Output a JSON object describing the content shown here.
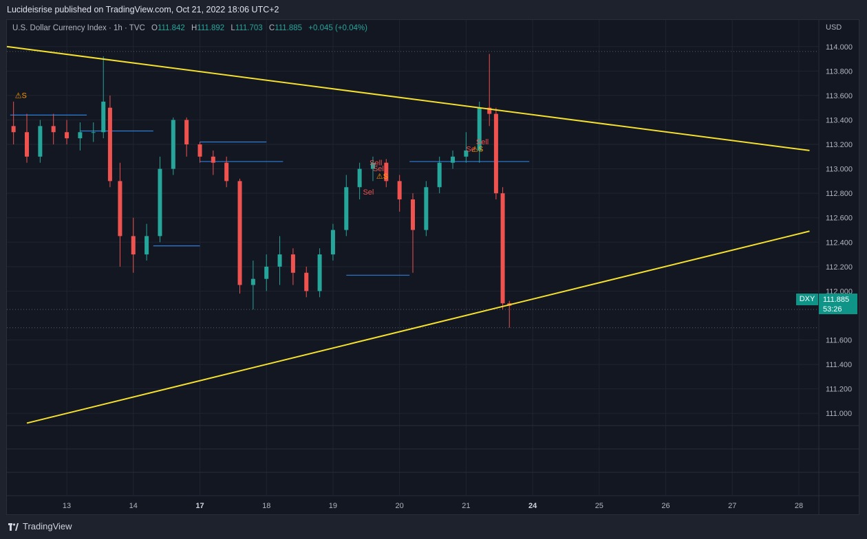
{
  "header": {
    "published": "Lucideisrise published on TradingView.com, Oct 21, 2022 18:06 UTC+2"
  },
  "legend": {
    "symbol": "U.S. Dollar Currency Index · 1h · TVC",
    "open_label": "O",
    "open": "111.842",
    "high_label": "H",
    "high": "111.892",
    "low_label": "L",
    "low": "111.703",
    "close_label": "C",
    "close": "111.885",
    "change": "+0.045 (+0.04%)"
  },
  "price_axis": {
    "currency": "USD",
    "ticker": "DXY",
    "last_price": "111.885",
    "countdown": "53:26"
  },
  "footer": {
    "brand": "TradingView"
  },
  "colors": {
    "up": "#26a69a",
    "down": "#ef5350",
    "trendline": "#f5e12d",
    "level": "#2f7fd8",
    "background": "#131722"
  },
  "chart_data": {
    "type": "candlestick",
    "title": "U.S. Dollar Currency Index, 1h, TVC",
    "ylabel": "USD",
    "ylim": [
      110.9,
      114.1
    ],
    "y_ticks": [
      "114.000",
      "113.800",
      "113.600",
      "113.400",
      "113.200",
      "113.000",
      "112.800",
      "112.600",
      "112.400",
      "112.200",
      "112.000",
      "111.600",
      "111.400",
      "111.200",
      "111.000"
    ],
    "x_ticks": [
      {
        "label": "13",
        "x": 0.9,
        "bold": false
      },
      {
        "label": "14",
        "x": 1.9,
        "bold": false
      },
      {
        "label": "17",
        "x": 2.9,
        "bold": true
      },
      {
        "label": "18",
        "x": 3.9,
        "bold": false
      },
      {
        "label": "19",
        "x": 4.9,
        "bold": false
      },
      {
        "label": "20",
        "x": 5.9,
        "bold": false
      },
      {
        "label": "21",
        "x": 6.9,
        "bold": false
      },
      {
        "label": "24",
        "x": 7.9,
        "bold": true
      },
      {
        "label": "25",
        "x": 8.9,
        "bold": false
      },
      {
        "label": "26",
        "x": 9.9,
        "bold": false
      },
      {
        "label": "27",
        "x": 10.9,
        "bold": false
      },
      {
        "label": "28",
        "x": 11.9,
        "bold": false
      }
    ],
    "x_range": [
      0,
      12.2
    ],
    "hlines_dotted": [
      113.96,
      111.85,
      111.7
    ],
    "trendlines": [
      {
        "name": "upper",
        "x": [
          0,
          12.06
        ],
        "y": [
          114.0,
          113.15
        ]
      },
      {
        "name": "lower",
        "x": [
          0.3,
          12.06
        ],
        "y": [
          110.92,
          112.49
        ]
      }
    ],
    "levels": [
      {
        "x0": 0.05,
        "x1": 1.2,
        "y": 113.44
      },
      {
        "x0": 1.1,
        "x1": 2.2,
        "y": 113.31
      },
      {
        "x0": 2.9,
        "x1": 3.9,
        "y": 113.22
      },
      {
        "x0": 2.9,
        "x1": 4.15,
        "y": 113.06
      },
      {
        "x0": 2.2,
        "x1": 2.9,
        "y": 112.37
      },
      {
        "x0": 5.1,
        "x1": 6.05,
        "y": 112.13
      },
      {
        "x0": 6.05,
        "x1": 7.85,
        "y": 113.06
      }
    ],
    "series": [
      {
        "name": "DXY",
        "x": [
          0.1,
          0.3,
          0.5,
          0.7,
          0.9,
          1.1,
          1.3,
          1.45,
          1.55,
          1.7,
          1.9,
          2.1,
          2.3,
          2.5,
          2.7,
          2.9,
          3.1,
          3.3,
          3.5,
          3.7,
          3.9,
          4.1,
          4.3,
          4.5,
          4.7,
          4.9,
          5.1,
          5.3,
          5.5,
          5.7,
          5.9,
          6.1,
          6.3,
          6.5,
          6.7,
          6.9,
          7.1,
          7.25,
          7.35,
          7.45,
          7.55
        ],
        "open": [
          113.35,
          113.3,
          113.1,
          113.35,
          113.3,
          113.25,
          113.3,
          113.3,
          113.5,
          112.9,
          112.45,
          112.3,
          112.45,
          113.0,
          113.4,
          113.2,
          113.1,
          113.05,
          112.9,
          112.05,
          112.1,
          112.2,
          112.3,
          112.15,
          112.0,
          112.3,
          112.5,
          112.85,
          113.0,
          113.05,
          112.9,
          112.75,
          112.5,
          112.85,
          113.05,
          113.1,
          113.15,
          113.5,
          113.45,
          112.8,
          111.9
        ],
        "close": [
          113.3,
          113.1,
          113.35,
          113.3,
          113.25,
          113.3,
          113.3,
          113.55,
          112.9,
          112.45,
          112.3,
          112.45,
          113.0,
          113.4,
          113.2,
          113.1,
          113.05,
          112.9,
          112.05,
          112.1,
          112.2,
          112.3,
          112.15,
          112.0,
          112.3,
          112.5,
          112.85,
          113.0,
          113.05,
          112.9,
          112.75,
          112.5,
          112.85,
          113.05,
          113.1,
          113.15,
          113.5,
          113.45,
          112.8,
          111.9,
          111.88
        ],
        "high": [
          113.55,
          113.45,
          113.4,
          113.45,
          113.4,
          113.38,
          113.38,
          113.92,
          113.6,
          113.05,
          112.6,
          112.55,
          113.1,
          113.42,
          113.42,
          113.22,
          113.15,
          113.1,
          112.92,
          112.25,
          112.3,
          112.45,
          112.35,
          112.2,
          112.35,
          112.55,
          112.95,
          113.05,
          113.1,
          113.08,
          112.95,
          112.8,
          112.9,
          113.1,
          113.15,
          113.3,
          113.55,
          113.94,
          113.5,
          112.85,
          111.92
        ],
        "low": [
          113.2,
          113.05,
          113.05,
          113.2,
          113.2,
          113.15,
          113.22,
          113.25,
          112.85,
          112.2,
          112.15,
          112.25,
          112.4,
          112.95,
          113.1,
          113.05,
          112.95,
          112.85,
          111.98,
          111.85,
          112.0,
          112.05,
          112.05,
          111.95,
          111.95,
          112.25,
          112.45,
          112.75,
          112.9,
          112.85,
          112.65,
          112.15,
          112.45,
          112.8,
          113.0,
          113.05,
          113.05,
          113.35,
          112.75,
          111.85,
          111.7
        ]
      }
    ],
    "annotations": [
      {
        "text": "⚠S",
        "x": 0.12,
        "y": 113.58,
        "color": "#ff9800"
      },
      {
        "text": "Sell",
        "x": 5.45,
        "y": 113.03,
        "color": "#ef5350"
      },
      {
        "text": "Sell",
        "x": 5.5,
        "y": 112.98,
        "color": "#ef5350"
      },
      {
        "text": "⚠S",
        "x": 5.55,
        "y": 112.92,
        "color": "#ff9800"
      },
      {
        "text": "Sel",
        "x": 5.35,
        "y": 112.79,
        "color": "#ef5350"
      },
      {
        "text": "Sell",
        "x": 7.05,
        "y": 113.2,
        "color": "#ef5350"
      },
      {
        "text": "Se",
        "x": 6.9,
        "y": 113.14,
        "color": "#ef5350"
      },
      {
        "text": "⚠S",
        "x": 6.98,
        "y": 113.14,
        "color": "#ff9800"
      }
    ]
  }
}
